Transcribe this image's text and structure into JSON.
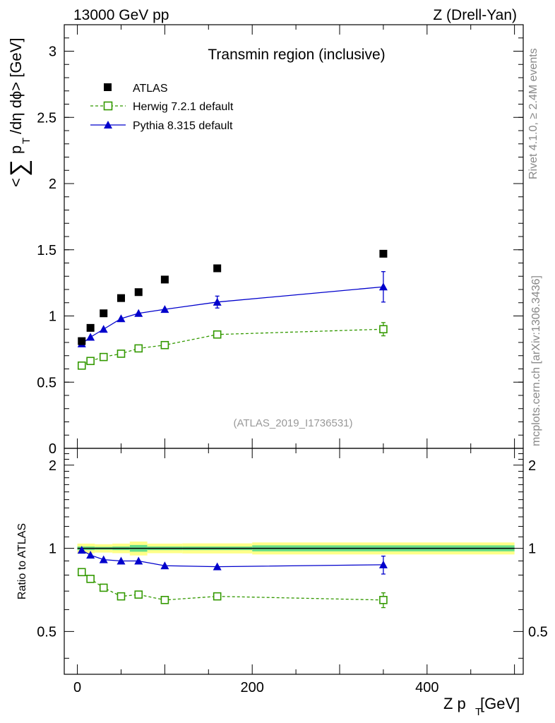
{
  "header": {
    "left": "13000 GeV pp",
    "right": "Z (Drell-Yan)"
  },
  "side_labels": {
    "rivet": "Rivet 4.1.0, ≥ 2.4M events",
    "mcplots": "mcplots.cern.ch [arXiv:1306.3436]"
  },
  "colors": {
    "atlas": "#000000",
    "herwig": "#339900",
    "pythia": "#0000cc",
    "band_inner": "#66dd88",
    "band_outer": "#ffff88",
    "watermark": "#999999"
  },
  "chart_data": [
    {
      "type": "scatter",
      "title": "Transmin region (inclusive)",
      "ylabel": "<∑ p_T /dη dϕ> [GeV]",
      "ylabel_parts": {
        "open": "<",
        "sum": "∑",
        "p": "p",
        "T": "T",
        "rest": "/dη dϕ> [GeV]"
      },
      "xlim": [
        -15,
        510
      ],
      "ylim": [
        0,
        3.2
      ],
      "yticks": [
        0,
        0.5,
        1,
        1.5,
        2,
        2.5,
        3
      ],
      "ytick_labels": [
        "0",
        "0.5",
        "1",
        "1.5",
        "2",
        "2.5",
        "3"
      ],
      "watermark": "(ATLAS_2019_I1736531)",
      "legend_position": "top-left",
      "series": [
        {
          "name": "ATLAS",
          "style": "filled-square",
          "x": [
            5,
            15,
            30,
            50,
            70,
            100,
            160,
            350
          ],
          "y": [
            0.81,
            0.91,
            1.02,
            1.135,
            1.18,
            1.275,
            1.36,
            1.47
          ],
          "yerr": [
            0.01,
            0.01,
            0.01,
            0.01,
            0.01,
            0.01,
            0.01,
            0.01
          ]
        },
        {
          "name": "Herwig 7.2.1 default",
          "style": "open-square-dashed",
          "x": [
            5,
            15,
            30,
            50,
            70,
            100,
            160,
            350
          ],
          "y": [
            0.625,
            0.66,
            0.69,
            0.715,
            0.755,
            0.78,
            0.86,
            0.9
          ],
          "yerr": [
            0.01,
            0.01,
            0.01,
            0.01,
            0.01,
            0.01,
            0.015,
            0.05
          ]
        },
        {
          "name": "Pythia 8.315 default",
          "style": "filled-triangle-solid",
          "x": [
            5,
            15,
            30,
            50,
            70,
            100,
            160,
            350
          ],
          "y": [
            0.79,
            0.84,
            0.9,
            0.98,
            1.02,
            1.05,
            1.105,
            1.22
          ],
          "yerr": [
            0.01,
            0.01,
            0.01,
            0.01,
            0.01,
            0.025,
            0.045,
            0.115
          ]
        }
      ]
    },
    {
      "type": "scatter",
      "title": "",
      "xlabel": "Z p_T [GeV]",
      "xlabel_parts": {
        "main": "Z p",
        "sub": "T",
        "rest": " [GeV]"
      },
      "ylabel": "Ratio to ATLAS",
      "xlim": [
        -15,
        510
      ],
      "ylim": [
        0.35,
        2.3
      ],
      "xticks": [
        0,
        200,
        400
      ],
      "xtick_labels": [
        "0",
        "200",
        "400"
      ],
      "yticks": [
        0.5,
        1,
        2
      ],
      "ytick_labels": [
        "0.5",
        "1",
        "2"
      ],
      "reference_line": 1,
      "uncertainty_band": [
        {
          "x0": 0,
          "x1": 10,
          "inner": 0.015,
          "outer": 0.04
        },
        {
          "x0": 10,
          "x1": 20,
          "inner": 0.015,
          "outer": 0.04
        },
        {
          "x0": 20,
          "x1": 40,
          "inner": 0.012,
          "outer": 0.035
        },
        {
          "x0": 40,
          "x1": 60,
          "inner": 0.015,
          "outer": 0.04
        },
        {
          "x0": 60,
          "x1": 80,
          "inner": 0.028,
          "outer": 0.058
        },
        {
          "x0": 80,
          "x1": 120,
          "inner": 0.015,
          "outer": 0.04
        },
        {
          "x0": 120,
          "x1": 200,
          "inner": 0.015,
          "outer": 0.042
        },
        {
          "x0": 200,
          "x1": 500,
          "inner": 0.025,
          "outer": 0.05
        }
      ],
      "series": [
        {
          "name": "Herwig 7.2.1 default",
          "style": "open-square-dashed",
          "x": [
            5,
            15,
            30,
            50,
            70,
            100,
            160,
            350
          ],
          "y": [
            0.82,
            0.775,
            0.72,
            0.67,
            0.68,
            0.65,
            0.67,
            0.65
          ],
          "yerr": [
            0.01,
            0.01,
            0.01,
            0.01,
            0.01,
            0.01,
            0.015,
            0.04
          ]
        },
        {
          "name": "Pythia 8.315 default",
          "style": "filled-triangle-solid",
          "x": [
            5,
            15,
            30,
            50,
            70,
            100,
            160,
            350
          ],
          "y": [
            0.985,
            0.945,
            0.91,
            0.9,
            0.9,
            0.865,
            0.858,
            0.872
          ],
          "yerr": [
            0.01,
            0.01,
            0.01,
            0.01,
            0.01,
            0.01,
            0.025,
            0.065
          ]
        }
      ]
    }
  ]
}
